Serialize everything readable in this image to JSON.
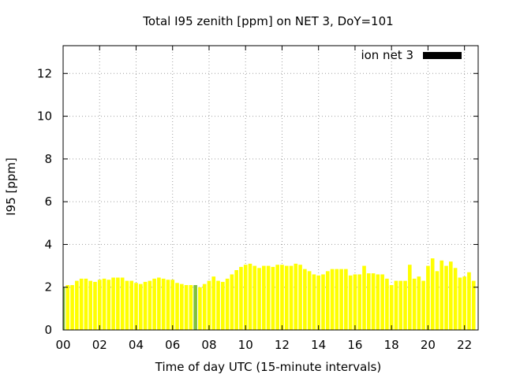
{
  "chart_data": {
    "type": "bar",
    "title": "Total I95 zenith [ppm] on NET 3, DoY=101",
    "xlabel": "Time of day UTC (15-minute intervals)",
    "ylabel": "I95 [ppm]",
    "xlim": [
      0,
      22.75
    ],
    "ylim": [
      0,
      13.3
    ],
    "x_ticks": [
      "00",
      "02",
      "04",
      "06",
      "08",
      "10",
      "12",
      "14",
      "16",
      "18",
      "20",
      "22"
    ],
    "x_tick_values": [
      0,
      2,
      4,
      6,
      8,
      10,
      12,
      14,
      16,
      18,
      20,
      22
    ],
    "y_ticks": [
      "0",
      "2",
      "4",
      "6",
      "8",
      "10",
      "12"
    ],
    "y_tick_values": [
      0,
      2,
      4,
      6,
      8,
      10,
      12
    ],
    "grid": true,
    "legend_position": "top-right",
    "bar_width_hours": 0.2,
    "bar_color": "#ffff00",
    "highlight_color": "#7fbf3f",
    "legend_swatch_color": "#000000",
    "series": [
      {
        "name": "ion net 3",
        "x": [
          0.0,
          0.25,
          0.5,
          0.75,
          1.0,
          1.25,
          1.5,
          1.75,
          2.0,
          2.25,
          2.5,
          2.75,
          3.0,
          3.25,
          3.5,
          3.75,
          4.0,
          4.25,
          4.5,
          4.75,
          5.0,
          5.25,
          5.5,
          5.75,
          6.0,
          6.25,
          6.5,
          6.75,
          7.0,
          7.25,
          7.5,
          7.75,
          8.0,
          8.25,
          8.5,
          8.75,
          9.0,
          9.25,
          9.5,
          9.75,
          10.0,
          10.25,
          10.5,
          10.75,
          11.0,
          11.25,
          11.5,
          11.75,
          12.0,
          12.25,
          12.5,
          12.75,
          13.0,
          13.25,
          13.5,
          13.75,
          14.0,
          14.25,
          14.5,
          14.75,
          15.0,
          15.25,
          15.5,
          15.75,
          16.0,
          16.25,
          16.5,
          16.75,
          17.0,
          17.25,
          17.5,
          17.75,
          18.0,
          18.25,
          18.5,
          18.75,
          19.0,
          19.25,
          19.5,
          19.75,
          20.0,
          20.25,
          20.5,
          20.75,
          21.0,
          21.25,
          21.5,
          21.75,
          22.0,
          22.25,
          22.5
        ],
        "values": [
          2.0,
          2.1,
          2.1,
          2.3,
          2.4,
          2.4,
          2.3,
          2.25,
          2.35,
          2.4,
          2.35,
          2.45,
          2.45,
          2.45,
          2.3,
          2.3,
          2.2,
          2.15,
          2.25,
          2.3,
          2.4,
          2.45,
          2.4,
          2.35,
          2.35,
          2.2,
          2.15,
          2.1,
          2.1,
          2.1,
          2.0,
          2.15,
          2.3,
          2.5,
          2.3,
          2.25,
          2.4,
          2.6,
          2.8,
          2.95,
          3.05,
          3.1,
          3.0,
          2.9,
          3.0,
          3.0,
          2.95,
          3.05,
          3.05,
          3.0,
          3.0,
          3.1,
          3.05,
          2.85,
          2.75,
          2.6,
          2.55,
          2.6,
          2.75,
          2.85,
          2.85,
          2.85,
          2.85,
          2.55,
          2.6,
          2.6,
          3.0,
          2.65,
          2.65,
          2.6,
          2.6,
          2.4,
          2.1,
          2.3,
          2.3,
          2.3,
          3.05,
          2.4,
          2.5,
          2.3,
          3.0,
          3.35,
          2.75,
          3.25,
          3.0,
          3.2,
          2.9,
          2.45,
          2.5,
          2.7,
          2.3
        ],
        "highlight_x": [
          0.0,
          7.25
        ]
      }
    ]
  }
}
